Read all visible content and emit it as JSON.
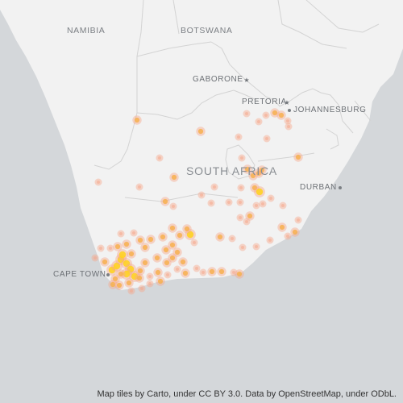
{
  "map": {
    "colors": {
      "water": "#d4d7da",
      "land": "#f2f2f2",
      "border": "#d3d3d3",
      "heat_low": "#f6a88c",
      "heat_mid": "#f7b04f",
      "heat_high": "#ffd21a"
    },
    "countries": [
      {
        "id": "namibia",
        "name": "NAMIBIA"
      },
      {
        "id": "botswana",
        "name": "BOTSWANA"
      },
      {
        "id": "south-africa",
        "name": "SOUTH AFRICA"
      }
    ],
    "cities": [
      {
        "id": "gaborone",
        "name": "GABORONE",
        "marker": "star"
      },
      {
        "id": "pretoria",
        "name": "PRETORIA",
        "marker": "star"
      },
      {
        "id": "johannesburg",
        "name": "JOHANNESBURG",
        "marker": "dot"
      },
      {
        "id": "durban",
        "name": "DURBAN",
        "marker": "dot"
      },
      {
        "id": "cape-town",
        "name": "CAPE TOWN",
        "marker": "dot"
      }
    ],
    "attribution": "Map tiles by Carto, under CC BY 3.0. Data by OpenStreetMap, under ODbL."
  }
}
